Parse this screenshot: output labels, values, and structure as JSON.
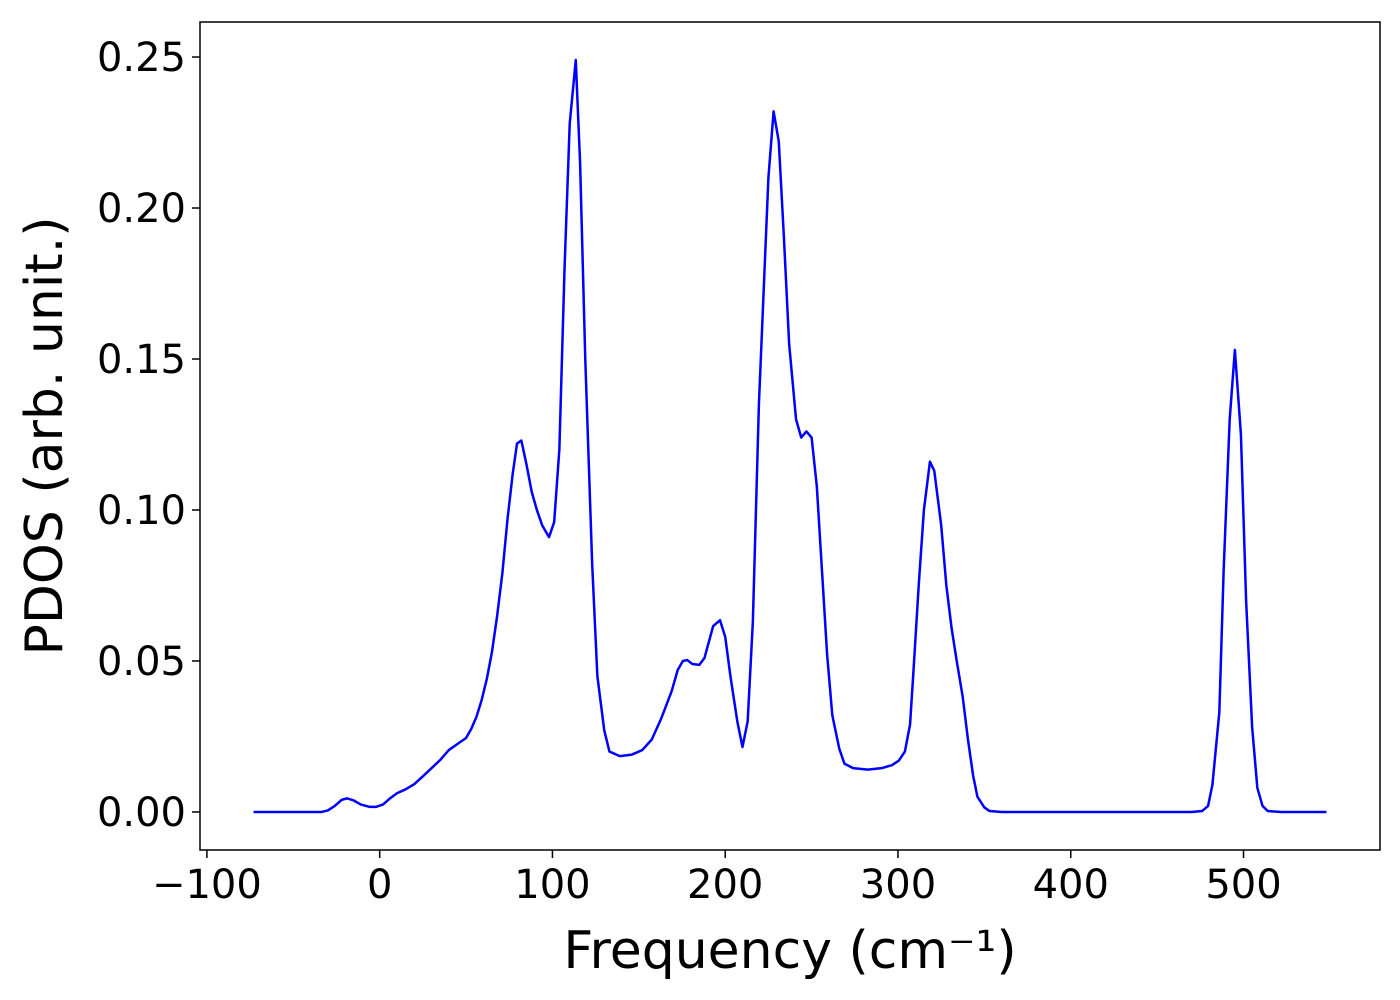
{
  "chart_data": {
    "type": "line",
    "xlabel": "Frequency (cm⁻¹)",
    "ylabel": "PDOS (arb. unit.)",
    "color": "#0000ff",
    "x": [
      -73,
      -33.6,
      -30,
      -26,
      -22,
      -19,
      -15,
      -11,
      -6,
      -2,
      2,
      6,
      10,
      15,
      20,
      25,
      30,
      35,
      40,
      45,
      50,
      53,
      56,
      59,
      62,
      65,
      68,
      71,
      74,
      77,
      79.5,
      82,
      85,
      88,
      91,
      94,
      98,
      101,
      104,
      107,
      110,
      113.5,
      116,
      119,
      123,
      126,
      130,
      133,
      139,
      146,
      152,
      157.5,
      163,
      169,
      172.5,
      175.5,
      178,
      181,
      185,
      188,
      193,
      197,
      200,
      203,
      207,
      210,
      213,
      216,
      219.5,
      225,
      228,
      231,
      234,
      237,
      241,
      244,
      247,
      250,
      253,
      256,
      259,
      262,
      266,
      269,
      274,
      282.5,
      290.5,
      296.5,
      300.5,
      304,
      307,
      309,
      312,
      315,
      318.5,
      321,
      325,
      328,
      331,
      334,
      337.5,
      340.5,
      343.5,
      346,
      350,
      353,
      360,
      470,
      476,
      479.5,
      482,
      486,
      488.5,
      492,
      495,
      498.5,
      501.5,
      505,
      508,
      511,
      514,
      522,
      548
    ],
    "values": [
      0,
      0,
      0.0005,
      0.002,
      0.004,
      0.0045,
      0.0038,
      0.0025,
      0.0017,
      0.0017,
      0.0025,
      0.0045,
      0.0062,
      0.0075,
      0.0092,
      0.0118,
      0.0145,
      0.0172,
      0.0205,
      0.0225,
      0.0245,
      0.0275,
      0.0315,
      0.037,
      0.044,
      0.053,
      0.065,
      0.079,
      0.097,
      0.112,
      0.122,
      0.123,
      0.115,
      0.106,
      0.1,
      0.095,
      0.091,
      0.096,
      0.12,
      0.18,
      0.228,
      0.249,
      0.215,
      0.15,
      0.082,
      0.045,
      0.027,
      0.02,
      0.0185,
      0.019,
      0.0205,
      0.024,
      0.031,
      0.04,
      0.047,
      0.05,
      0.0503,
      0.049,
      0.0487,
      0.051,
      0.0615,
      0.0635,
      0.058,
      0.045,
      0.03,
      0.0215,
      0.03,
      0.063,
      0.135,
      0.21,
      0.232,
      0.222,
      0.19,
      0.155,
      0.13,
      0.124,
      0.126,
      0.124,
      0.108,
      0.08,
      0.052,
      0.032,
      0.021,
      0.016,
      0.0145,
      0.014,
      0.0145,
      0.0155,
      0.017,
      0.02,
      0.029,
      0.047,
      0.075,
      0.1,
      0.116,
      0.113,
      0.095,
      0.075,
      0.061,
      0.05,
      0.038,
      0.024,
      0.012,
      0.005,
      0.0015,
      0.0003,
      0,
      0,
      0.0003,
      0.002,
      0.009,
      0.033,
      0.08,
      0.13,
      0.153,
      0.125,
      0.07,
      0.028,
      0.008,
      0.002,
      0.0003,
      0,
      0
    ],
    "xlim": [
      -104,
      579
    ],
    "ylim": [
      -0.0126,
      0.2616
    ],
    "xticks": [
      {
        "value": -100,
        "label": "−100"
      },
      0,
      100,
      200,
      300,
      400,
      500
    ],
    "yticks": [
      {
        "value": 0,
        "label": "0.00"
      },
      {
        "value": 0.05,
        "label": "0.05"
      },
      {
        "value": 0.1,
        "label": "0.10"
      },
      {
        "value": 0.15,
        "label": "0.15"
      },
      {
        "value": 0.2,
        "label": "0.20"
      },
      {
        "value": 0.25,
        "label": "0.25"
      }
    ]
  }
}
